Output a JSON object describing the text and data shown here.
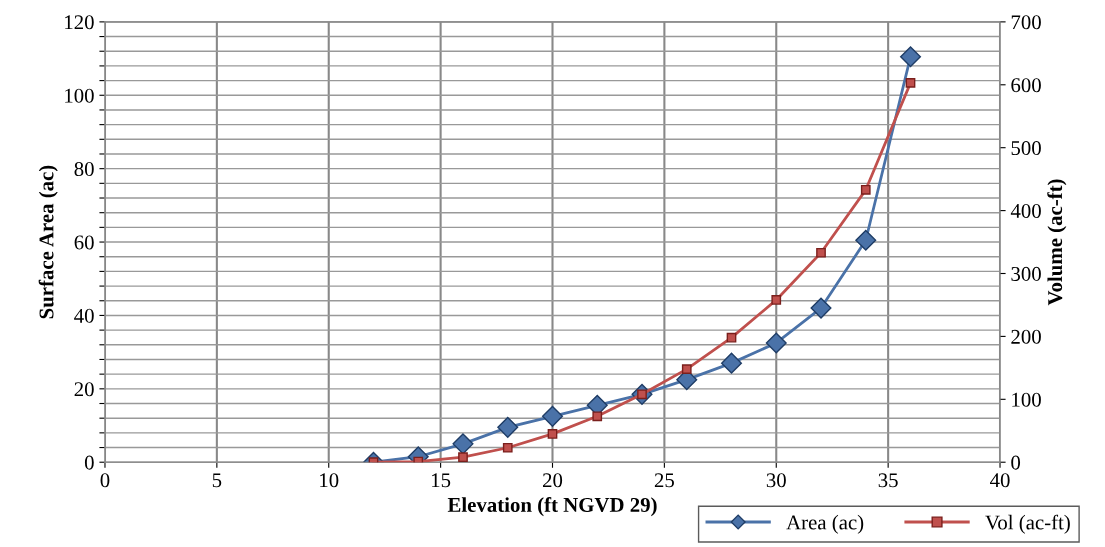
{
  "chart_data": {
    "type": "line",
    "xlabel": "Elevation (ft NGVD 29)",
    "ylabel": "Surface Area (ac)",
    "y2label": "Volume (ac-ft)",
    "x": [
      12,
      14,
      16,
      18,
      20,
      22,
      24,
      26,
      28,
      30,
      32,
      34,
      36
    ],
    "series": [
      {
        "name": "Area (ac)",
        "color": "#4a72a8",
        "marker": "diamond",
        "values": [
          0,
          1.5,
          5,
          9.5,
          12.5,
          15.5,
          18.5,
          22.5,
          27,
          32.5,
          42,
          60.5,
          110.5
        ]
      },
      {
        "name": "Vol (ac-ft)",
        "color": "#c0504d",
        "marker": "square",
        "axis": "y2",
        "values": [
          0,
          1,
          8,
          23,
          45,
          73,
          108,
          148,
          198,
          258,
          333,
          433,
          603
        ]
      }
    ],
    "xlim": [
      0,
      40
    ],
    "xticks": [
      0,
      5,
      10,
      15,
      20,
      25,
      30,
      35,
      40
    ],
    "ylim": [
      0,
      120
    ],
    "yticks": [
      0,
      {
        "value": 4,
        "label": null
      },
      {
        "value": 8,
        "label": null
      },
      {
        "value": 12,
        "label": null
      },
      {
        "value": 16,
        "label": null
      },
      20,
      {
        "value": 24,
        "label": null
      },
      {
        "value": 28,
        "label": null
      },
      {
        "value": 32,
        "label": null
      },
      {
        "value": 36,
        "label": null
      },
      40,
      {
        "value": 44,
        "label": null
      },
      {
        "value": 48,
        "label": null
      },
      {
        "value": 52,
        "label": null
      },
      {
        "value": 56,
        "label": null
      },
      60,
      {
        "value": 64,
        "label": null
      },
      {
        "value": 68,
        "label": null
      },
      {
        "value": 72,
        "label": null
      },
      {
        "value": 76,
        "label": null
      },
      80,
      {
        "value": 84,
        "label": null
      },
      {
        "value": 88,
        "label": null
      },
      {
        "value": 92,
        "label": null
      },
      {
        "value": 96,
        "label": null
      },
      100,
      {
        "value": 104,
        "label": null
      },
      {
        "value": 108,
        "label": null
      },
      {
        "value": 112,
        "label": null
      },
      {
        "value": 116,
        "label": null
      },
      120
    ],
    "y2lim": [
      0,
      700
    ],
    "y2ticks": [
      0,
      100,
      200,
      300,
      400,
      500,
      600,
      700
    ],
    "grid": true,
    "legend": "bottom right",
    "line_style": "solid"
  }
}
